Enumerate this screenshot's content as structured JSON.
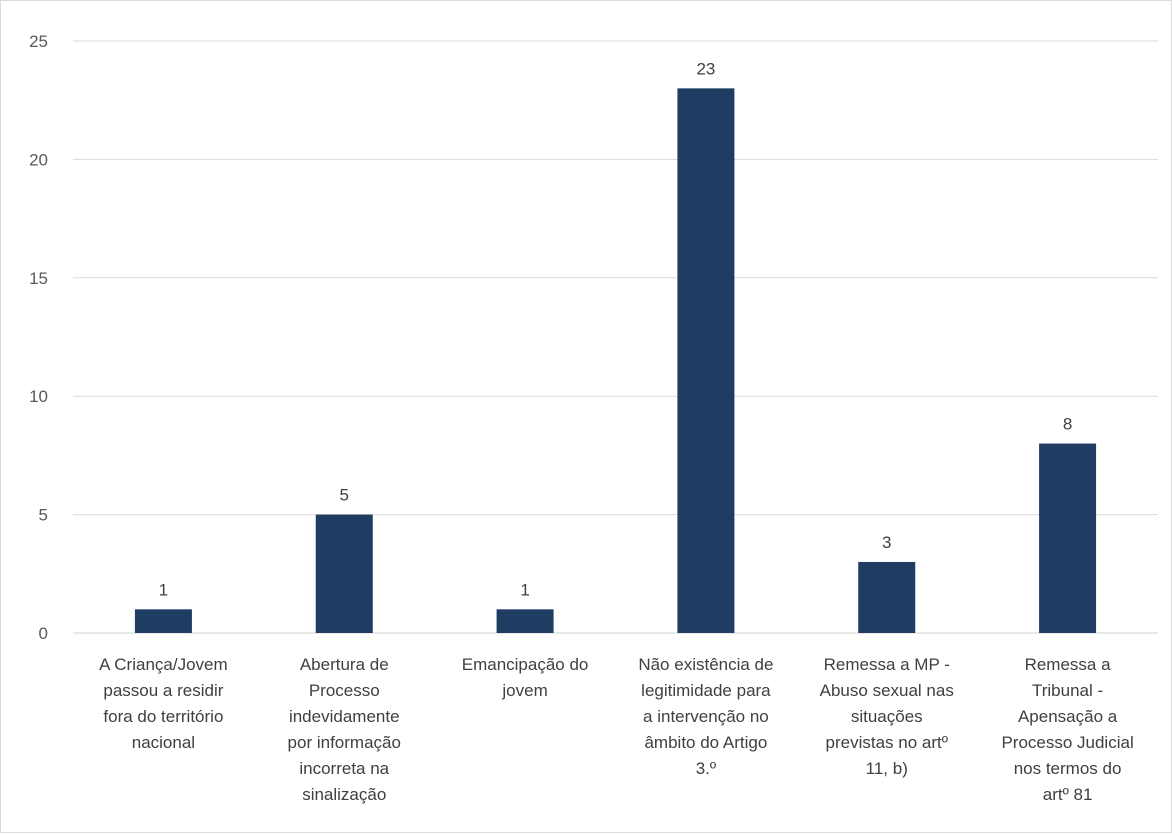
{
  "chart_data": {
    "type": "bar",
    "categories": [
      "A Criança/Jovem passou a residir fora do território nacional",
      "Abertura de Processo indevidamente por informação incorreta na sinalização",
      "Emancipação do jovem",
      "Não existência de legitimidade para a intervenção no âmbito do Artigo 3.º",
      "Remessa a MP - Abuso sexual nas situações previstas no artº 11, b)",
      "Remessa a Tribunal - Apensação a Processo Judicial nos termos do artº 81"
    ],
    "category_lines": [
      [
        "A Criança/Jovem",
        "passou a residir",
        "fora do território",
        "nacional"
      ],
      [
        "Abertura de",
        "Processo",
        "indevidamente",
        "por informação",
        "incorreta na",
        "sinalização"
      ],
      [
        "Emancipação do",
        "jovem"
      ],
      [
        "Não existência de",
        "legitimidade para",
        "a intervenção no",
        "âmbito do Artigo",
        "3.º"
      ],
      [
        "Remessa a MP -",
        "Abuso sexual nas",
        "situações",
        "previstas no artº",
        "11, b)"
      ],
      [
        "Remessa a",
        "Tribunal -",
        "Apensação a",
        "Processo Judicial",
        "nos termos do",
        "artº 81"
      ]
    ],
    "values": [
      1,
      5,
      1,
      23,
      3,
      8
    ],
    "data_labels": [
      "1",
      "5",
      "1",
      "23",
      "3",
      "8"
    ],
    "ylim": [
      0,
      25
    ],
    "yticks": [
      "0",
      "5",
      "10",
      "15",
      "20",
      "25"
    ],
    "grid": true,
    "legend": "none",
    "title": "",
    "xlabel": "",
    "ylabel": "",
    "colors": {
      "bar": "#1f3d63",
      "grid": "#d9d9d9",
      "axis": "#d9d9d9",
      "text": "#404040"
    }
  }
}
